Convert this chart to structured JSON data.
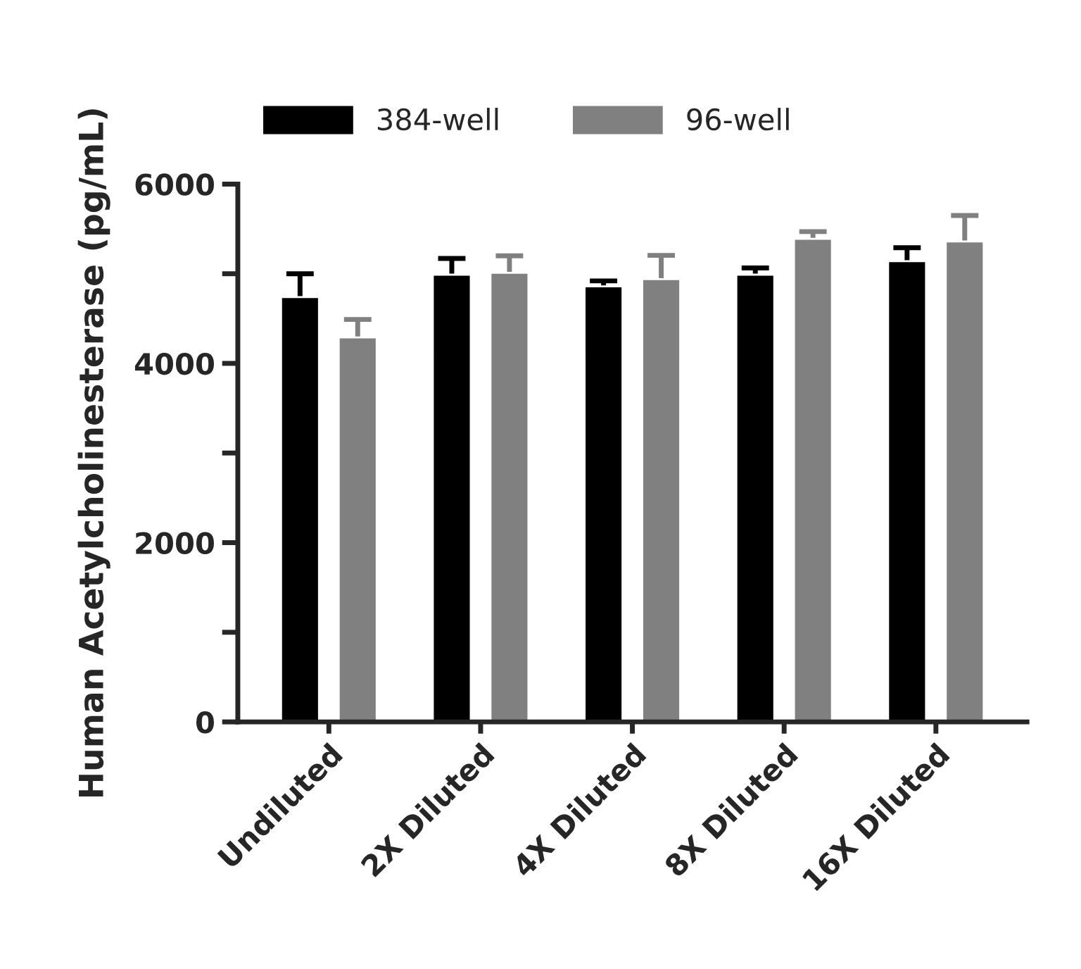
{
  "chart_data": {
    "type": "bar",
    "ylabel": "Human Acetylcholinesterase (pg/mL)",
    "categories": [
      "Undiluted",
      "2X Diluted",
      "4X Diluted",
      "8X Diluted",
      "16X Diluted"
    ],
    "series": [
      {
        "name": "384-well",
        "color": "#000000",
        "values": [
          4740,
          4990,
          4860,
          4990,
          5140
        ],
        "errors": [
          260,
          180,
          60,
          75,
          150
        ]
      },
      {
        "name": "96-well",
        "color": "#808080",
        "values": [
          4290,
          5010,
          4940,
          5390,
          5360
        ],
        "errors": [
          200,
          190,
          265,
          80,
          290
        ]
      }
    ],
    "ylim": [
      0,
      6000
    ],
    "yticks": [
      0,
      {
        "value": 1000,
        "label": null
      },
      2000,
      {
        "value": 3000,
        "label": null
      },
      4000,
      {
        "value": 5000,
        "label": null
      },
      6000
    ],
    "grid": false,
    "legend": "top"
  }
}
